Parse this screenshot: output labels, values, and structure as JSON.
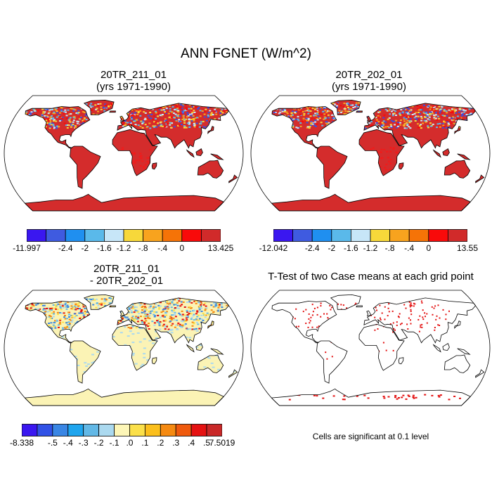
{
  "title": "ANN FGNET (W/m^2)",
  "panels": [
    {
      "id": "case1",
      "title_line1": "20TR_211_01",
      "title_line2": "(yrs 1971-1990)",
      "colorbar": {
        "colors": [
          "#3a17f0",
          "#3f5be0",
          "#1f8ff0",
          "#5ab9ea",
          "#c7e6f8",
          "#f7d83a",
          "#f8a31e",
          "#f57307",
          "#f90a0a",
          "#d12a2a"
        ],
        "labels": [
          "-11.997",
          "-2.4",
          "-2",
          "-1.6",
          "-1.2",
          "-.8",
          "-.4",
          "0",
          "13.425"
        ]
      }
    },
    {
      "id": "case2",
      "title_line1": "20TR_202_01",
      "title_line2": "(yrs 1971-1990)",
      "colorbar": {
        "colors": [
          "#3a17f0",
          "#3f5be0",
          "#1f8ff0",
          "#5ab9ea",
          "#c7e6f8",
          "#f7d83a",
          "#f8a31e",
          "#f57307",
          "#f90a0a",
          "#d12a2a"
        ],
        "labels": [
          "-12.042",
          "-2.4",
          "-2",
          "-1.6",
          "-1.2",
          "-.8",
          "-.4",
          "0",
          "13.55"
        ]
      }
    },
    {
      "id": "diff",
      "title_line1": "20TR_211_01",
      "title_line2": "- 20TR_202_01",
      "colorbar": {
        "colors": [
          "#3a17f0",
          "#3152e6",
          "#3a86e4",
          "#1fa5ee",
          "#62b8e6",
          "#abd9ef",
          "#fdf6b7",
          "#fbe04a",
          "#fbbf1c",
          "#f58a11",
          "#ef5a0d",
          "#e51212",
          "#c92828"
        ],
        "labels": [
          "-8.338",
          "-.5",
          "-.4",
          "-.3",
          "-.2",
          "-.1",
          ".0",
          ".1",
          ".2",
          ".3",
          ".4",
          ".5",
          "7.5019"
        ]
      }
    },
    {
      "id": "ttest",
      "title_line1": "T-Test of two Case means at each grid point",
      "footnote": "Cells are significant at 0.1 level"
    }
  ],
  "colors": {
    "land_case": "#d42c2c",
    "land_case_bright": "#f21a1a",
    "high_lat_mix": [
      "#3a4fe0",
      "#5ab9ea",
      "#f7d83a",
      "#f8a31e",
      "#f90a0a",
      "#c7e6f8"
    ],
    "land_diff": "#fbf3b5",
    "diff_mix": [
      "#abd9ef",
      "#62b8e6",
      "#fbe04a",
      "#f58a11",
      "#e51212",
      "#3a86e4"
    ],
    "significant": "#e31010"
  }
}
